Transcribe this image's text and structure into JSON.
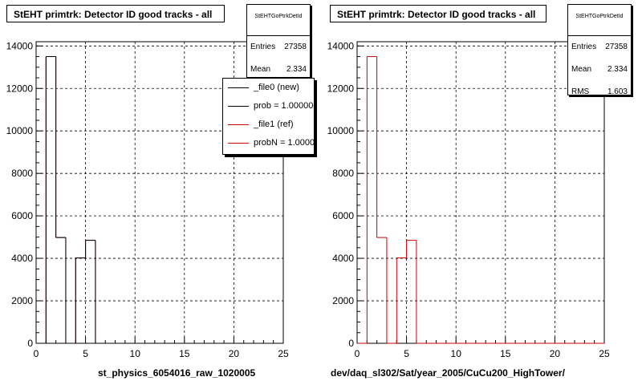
{
  "colors": {
    "new": "#000000",
    "ref": "#cc0000",
    "grid": "#000000"
  },
  "panels": [
    {
      "title": "StEHT primtrk: Detector ID good tracks - all",
      "stats": {
        "name": "StEHTGoPtrkDetId",
        "rows": [
          [
            "Entries",
            "27358"
          ],
          [
            "Mean",
            "2.334"
          ]
        ]
      },
      "xtitle": "st_physics_6054016_raw_1020005",
      "legend": [
        {
          "label": "_file0 (new)",
          "color": "#000000"
        },
        {
          "label": "prob = 1.000000",
          "color": "#000000"
        },
        {
          "label": "_file1 (ref)",
          "color": "#cc0000"
        },
        {
          "label": "probN = 1.000000",
          "color": "#cc0000"
        }
      ]
    },
    {
      "title": "StEHT primtrk: Detector ID good tracks - all",
      "stats": {
        "name": "StEHTGoPtrkDetId",
        "rows": [
          [
            "Entries",
            "27358"
          ],
          [
            "Mean",
            "2.334"
          ],
          [
            "RMS",
            "1.603"
          ]
        ]
      },
      "xtitle": "dev/daq_sl302/Sat/year_2005/CuCu200_HighTower/",
      "legend": []
    }
  ],
  "chart_data": [
    {
      "type": "bar",
      "title": "StEHT primtrk: Detector ID good tracks - all",
      "xlabel": "st_physics_6054016_raw_1020005",
      "ylabel": "",
      "xlim": [
        0,
        25
      ],
      "ylim": [
        0,
        14200
      ],
      "xticks": [
        "0",
        "5",
        "10",
        "15",
        "20",
        "25"
      ],
      "yticks": [
        "0",
        "2000",
        "4000",
        "6000",
        "8000",
        "10000",
        "12000",
        "14000"
      ],
      "grid": true,
      "bin_edges": [
        0,
        1,
        2,
        3,
        4,
        5,
        6,
        7,
        8,
        9,
        10,
        11,
        12,
        13,
        14,
        15,
        16,
        17,
        18,
        19,
        20,
        21,
        22,
        23,
        24,
        25
      ],
      "series": [
        {
          "name": "_file0 (new)",
          "color": "#000000",
          "values": [
            0,
            13500,
            4980,
            0,
            4020,
            4850,
            0,
            0,
            0,
            0,
            0,
            0,
            0,
            0,
            0,
            0,
            0,
            0,
            0,
            0,
            0,
            0,
            0,
            0,
            0
          ]
        },
        {
          "name": "_file1 (ref)",
          "color": "#cc0000",
          "values": [
            0,
            13500,
            4980,
            0,
            4020,
            4850,
            0,
            0,
            0,
            0,
            0,
            0,
            0,
            0,
            0,
            0,
            0,
            0,
            0,
            0,
            0,
            0,
            0,
            0,
            0
          ]
        }
      ]
    },
    {
      "type": "bar",
      "title": "StEHT primtrk: Detector ID good tracks - all",
      "xlabel": "dev/daq_sl302/Sat/year_2005/CuCu200_HighTower/",
      "ylabel": "",
      "xlim": [
        0,
        25
      ],
      "ylim": [
        0,
        14200
      ],
      "xticks": [
        "0",
        "5",
        "10",
        "15",
        "20",
        "25"
      ],
      "yticks": [
        "0",
        "2000",
        "4000",
        "6000",
        "8000",
        "10000",
        "12000",
        "14000"
      ],
      "grid": true,
      "bin_edges": [
        0,
        1,
        2,
        3,
        4,
        5,
        6,
        7,
        8,
        9,
        10,
        11,
        12,
        13,
        14,
        15,
        16,
        17,
        18,
        19,
        20,
        21,
        22,
        23,
        24,
        25
      ],
      "series": [
        {
          "name": "",
          "color": "#cc0000",
          "values": [
            0,
            13500,
            4980,
            0,
            4020,
            4850,
            0,
            0,
            0,
            0,
            0,
            0,
            0,
            0,
            0,
            0,
            0,
            0,
            0,
            0,
            0,
            0,
            0,
            0,
            0
          ]
        }
      ]
    }
  ]
}
